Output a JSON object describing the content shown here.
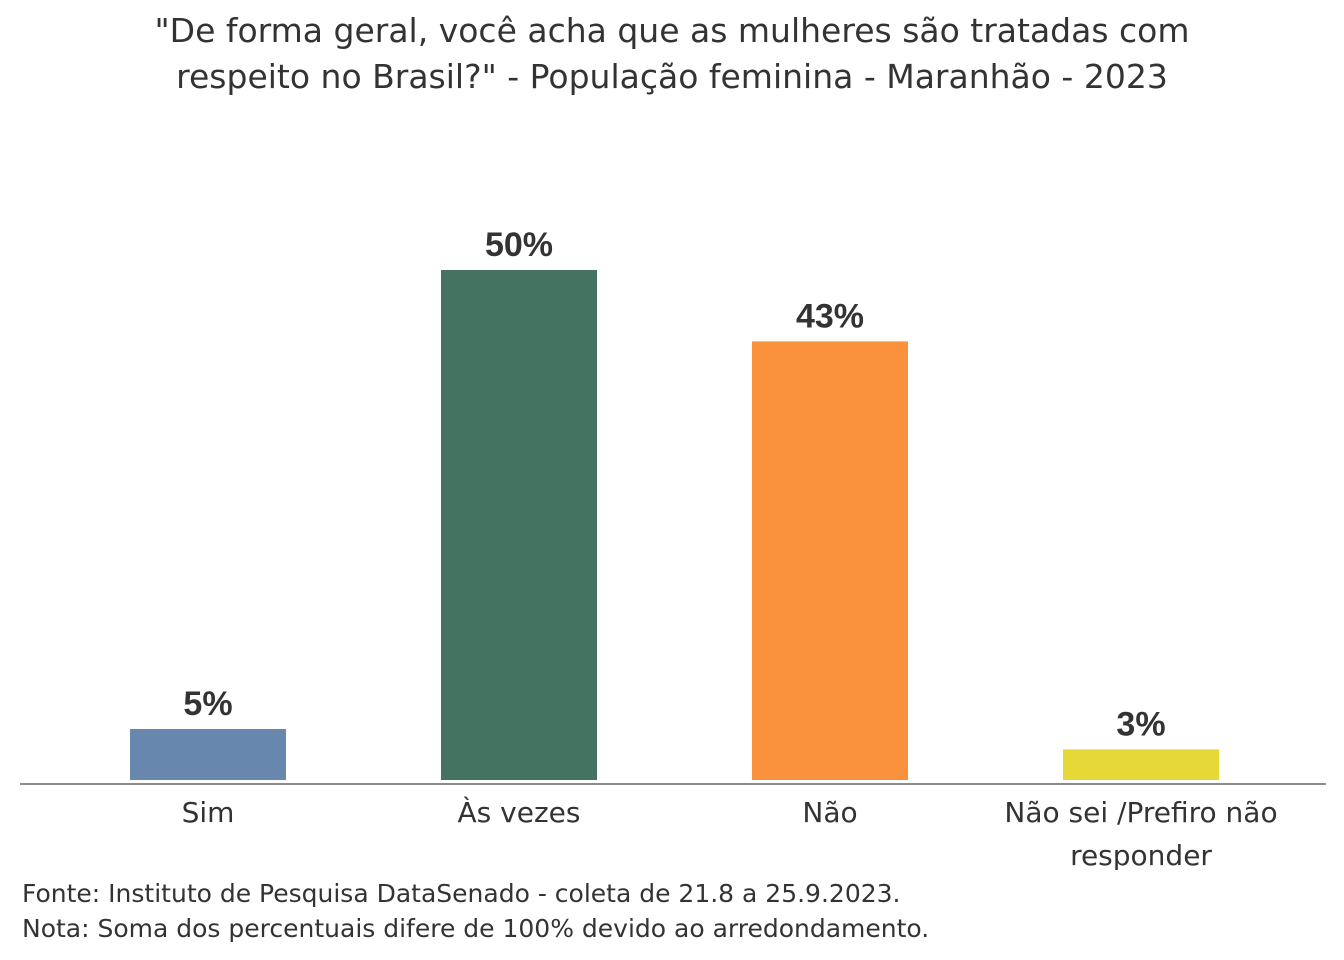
{
  "title_lines": [
    "\"De forma geral, você acha que as mulheres são tratadas com",
    "respeito no Brasil?\" - População feminina - Maranhão - 2023"
  ],
  "chart_data": {
    "type": "bar",
    "title": "\"De forma geral, você acha que as mulheres são tratadas com respeito no Brasil?\" - População feminina - Maranhão - 2023",
    "categories": [
      "Sim",
      "Às vezes",
      "Não",
      "Não sei /Prefiro não responder"
    ],
    "category_label_lines": [
      [
        "Sim"
      ],
      [
        "Às vezes"
      ],
      [
        "Não"
      ],
      [
        "Não sei /Prefiro não",
        "responder"
      ]
    ],
    "values": [
      5,
      50,
      43,
      3
    ],
    "data_labels": [
      "5%",
      "50%",
      "43%",
      "3%"
    ],
    "colors": [
      "#6787ae",
      "#447361",
      "#fa913c",
      "#e6d937"
    ],
    "unit": "%",
    "ylim": [
      0,
      50
    ],
    "grid": false,
    "legend": "none"
  },
  "footer": {
    "source": "Fonte: Instituto de Pesquisa DataSenado - coleta de 21.8 a 25.9.2023.",
    "note": "Nota: Soma dos percentuais difere de 100% devido ao arredondamento."
  }
}
